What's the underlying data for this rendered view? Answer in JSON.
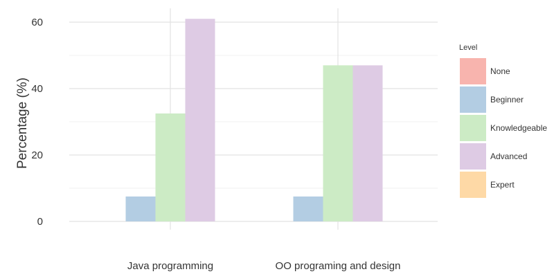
{
  "chart_data": {
    "type": "bar",
    "categories": [
      "Java programming",
      "OO programing and design"
    ],
    "series": [
      {
        "name": "None",
        "values": [
          0,
          0
        ]
      },
      {
        "name": "Beginner",
        "values": [
          7.5,
          7.5
        ]
      },
      {
        "name": "Knowledgeable",
        "values": [
          32.5,
          47
        ]
      },
      {
        "name": "Advanced",
        "values": [
          61,
          47
        ]
      },
      {
        "name": "Expert",
        "values": [
          0,
          0
        ]
      }
    ],
    "colors": {
      "None": "#f8b4ae",
      "Beginner": "#b3cde3",
      "Knowledgeable": "#ccebc5",
      "Advanced": "#decbe4",
      "Expert": "#fed9a6"
    },
    "title": "",
    "xlabel": "",
    "ylabel": "Percentage (%)",
    "ylim": [
      0,
      65
    ],
    "yticks": [
      0,
      20,
      40,
      60
    ],
    "grid": true,
    "legend": {
      "title": "Level",
      "position": "right"
    }
  }
}
